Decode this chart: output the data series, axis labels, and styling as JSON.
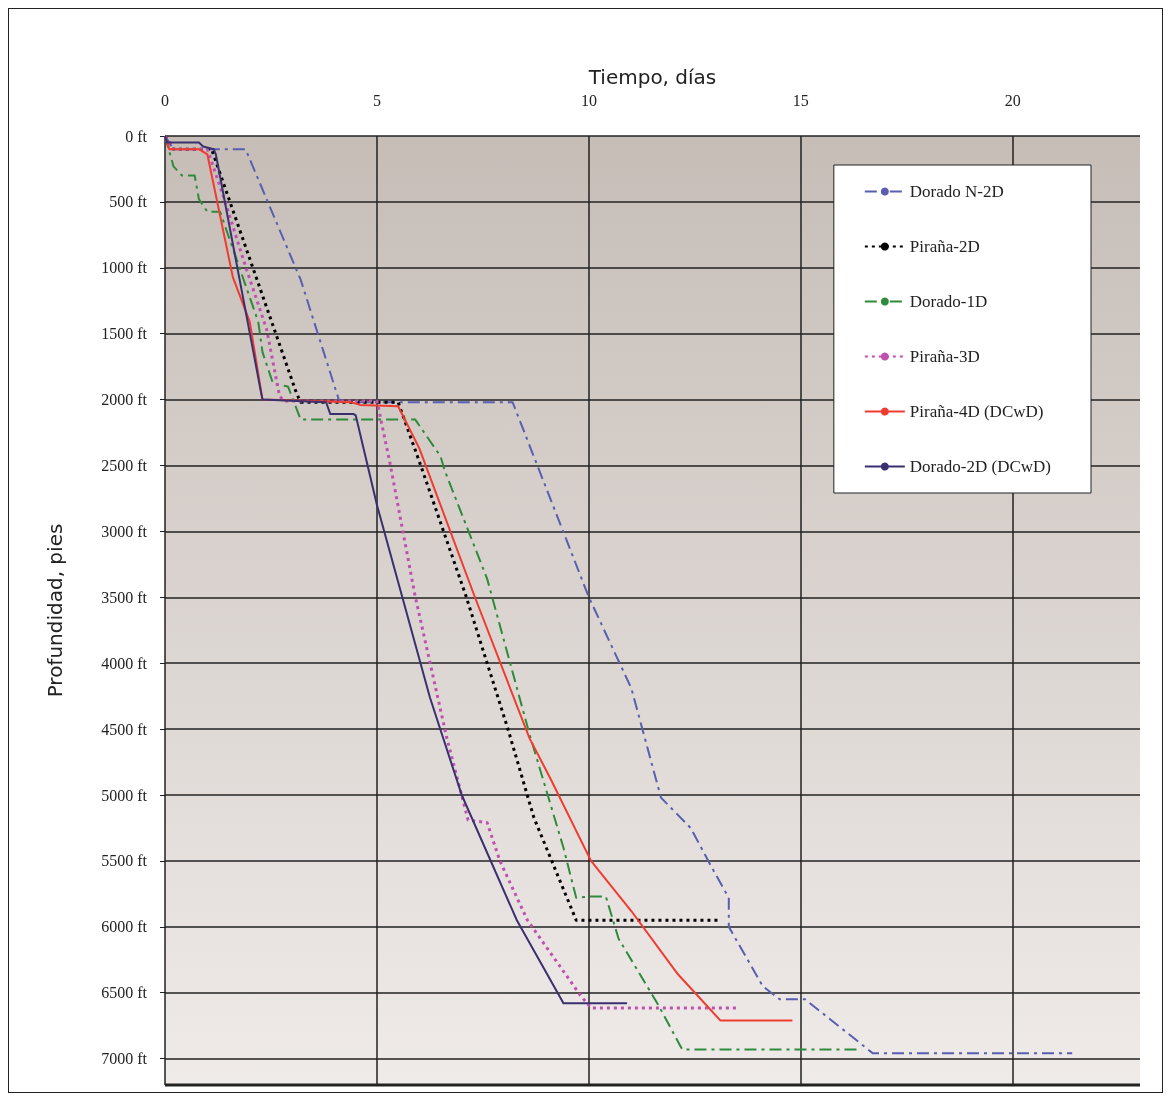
{
  "chart_data": {
    "type": "line",
    "xlabel": "Tiempo, días",
    "ylabel": "Profundidad, pies",
    "xlim": [
      0,
      23
    ],
    "xticks": [
      0,
      5,
      10,
      15,
      20
    ],
    "ylim": [
      7200,
      0
    ],
    "yticks": [
      {
        "value": 0,
        "label": "0 ft"
      },
      {
        "value": 500,
        "label": "500 ft"
      },
      {
        "value": 1000,
        "label": "1000 ft"
      },
      {
        "value": 1500,
        "label": "1500 ft"
      },
      {
        "value": 2000,
        "label": "2000 ft"
      },
      {
        "value": 2500,
        "label": "2500 ft"
      },
      {
        "value": 3000,
        "label": "3000 ft"
      },
      {
        "value": 3500,
        "label": "3500 ft"
      },
      {
        "value": 4000,
        "label": "4000 ft"
      },
      {
        "value": 4500,
        "label": "4500 ft"
      },
      {
        "value": 5000,
        "label": "5000 ft"
      },
      {
        "value": 5500,
        "label": "5500 ft"
      },
      {
        "value": 6000,
        "label": "6000 ft"
      },
      {
        "value": 6500,
        "label": "6500 ft"
      },
      {
        "value": 7000,
        "label": "7000 ft"
      }
    ],
    "grid": true,
    "legend": "top right",
    "marker": "none",
    "series": [
      {
        "name": "Dorado N-2D",
        "color": "#5a5eb0",
        "line_style": "dashdot",
        "x": [
          0,
          0.2,
          1.9,
          3.2,
          4.1,
          4.2,
          8.2,
          10,
          11,
          11.7,
          12.4,
          12.9,
          13.3,
          13.3,
          14.1,
          14.5,
          15.1,
          16.7,
          21.4
        ],
        "values": [
          0,
          100,
          100,
          1090,
          2000,
          2020,
          2020,
          3500,
          4190,
          5020,
          5250,
          5550,
          5780,
          6000,
          6450,
          6550,
          6550,
          6960,
          6960
        ]
      },
      {
        "name": "Piraña-2D",
        "color": "#000000",
        "line_style": "dotted",
        "x": [
          0,
          0.2,
          1.1,
          3.1,
          3.2,
          5.5,
          6.0,
          7.1,
          8.1,
          8.7,
          9.7,
          13.1
        ],
        "values": [
          0,
          100,
          100,
          1950,
          2020,
          2020,
          2470,
          3490,
          4510,
          5170,
          5950,
          5950
        ]
      },
      {
        "name": "Dorado-1D",
        "color": "#2e8b3a",
        "line_style": "dashdot",
        "x": [
          0,
          0.2,
          0.4,
          0.7,
          0.8,
          1.0,
          1.3,
          2.2,
          2.3,
          2.55,
          2.9,
          3.2,
          5.9,
          6.5,
          6.6,
          7.6,
          8.6,
          9.4,
          9.7,
          10.0,
          10.4,
          10.7,
          11.65,
          12.2,
          16.4
        ],
        "values": [
          0,
          230,
          300,
          300,
          480,
          575,
          575,
          1410,
          1640,
          1880,
          1900,
          2150,
          2150,
          2430,
          2540,
          3360,
          4540,
          5400,
          5780,
          5770,
          5770,
          6090,
          6600,
          6930,
          6930
        ]
      },
      {
        "name": "Piraña-3D",
        "color": "#c050b0",
        "line_style": "dotted",
        "x": [
          0,
          0.2,
          1.0,
          1.4,
          1.9,
          2.4,
          2.7,
          2.8,
          5.0,
          5.3,
          5.9,
          6.65,
          7.15,
          7.6,
          7.9,
          8.55,
          9.8,
          10.05,
          13.5
        ],
        "values": [
          0,
          100,
          100,
          480,
          990,
          1470,
          1970,
          2010,
          2010,
          2470,
          3490,
          4570,
          5190,
          5210,
          5500,
          5950,
          6520,
          6615,
          6615
        ]
      },
      {
        "name": "Piraña-4D (DCwD)",
        "color": "#f03c30",
        "line_style": "solid",
        "x": [
          0,
          0.1,
          0.8,
          1.0,
          1.6,
          2.0,
          2.3,
          4.4,
          4.6,
          5.5,
          6.0,
          7.3,
          8.6,
          9.1,
          10.05,
          11.0,
          12.1,
          13.1,
          14.8
        ],
        "values": [
          0,
          100,
          100,
          140,
          1070,
          1410,
          2000,
          2020,
          2040,
          2050,
          2370,
          3490,
          4570,
          4880,
          5500,
          5880,
          6360,
          6710,
          6710
        ]
      },
      {
        "name": "Dorado-2D (DCwD)",
        "color": "#3a3070",
        "line_style": "solid",
        "x": [
          0,
          0.05,
          0.8,
          0.9,
          1.15,
          1.2,
          2.25,
          2.3,
          3.8,
          3.9,
          4.45,
          4.5,
          5.0,
          6.25,
          7.0,
          8.3,
          9.4,
          10.9
        ],
        "values": [
          0,
          50,
          50,
          80,
          100,
          140,
          1920,
          2000,
          2020,
          2110,
          2110,
          2120,
          2800,
          4260,
          5000,
          5950,
          6580,
          6580
        ]
      }
    ]
  }
}
